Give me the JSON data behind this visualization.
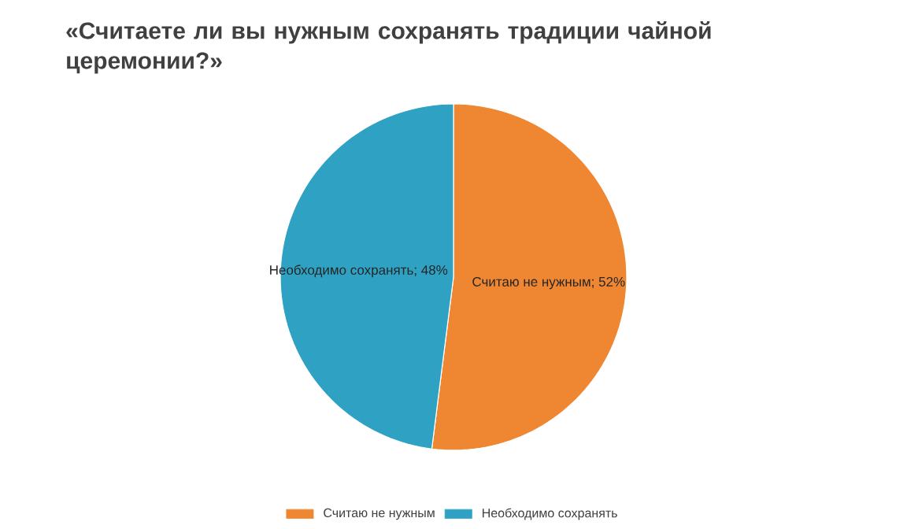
{
  "chart_data": {
    "type": "pie",
    "title": "«Считаете ли вы нужным сохранять традиции чайной церемонии?»",
    "categories": [
      "Считаю не нужным",
      "Необходимо сохранять"
    ],
    "values": [
      52,
      48
    ],
    "colors": [
      "#ef8732",
      "#2fa2c4"
    ],
    "data_labels": true,
    "value_labels": [
      "Считаю не  нужным; 52%",
      "Необходимо сохранять; 48%"
    ],
    "legend": "bottom"
  }
}
